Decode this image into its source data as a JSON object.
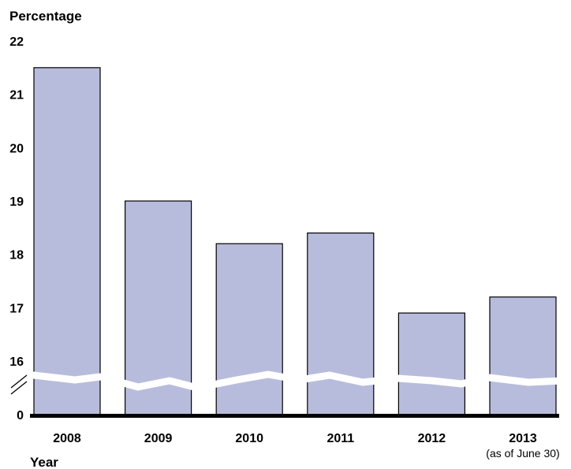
{
  "chart_data": {
    "type": "bar",
    "ylabel": "Percentage",
    "xlabel": "Year",
    "categories": [
      "2008",
      "2009",
      "2010",
      "2011",
      "2012",
      "2013"
    ],
    "category_notes": [
      "",
      "",
      "",
      "",
      "",
      "(as of June 30)"
    ],
    "values": [
      21.5,
      19.0,
      18.2,
      18.4,
      16.9,
      17.2
    ],
    "yticks": [
      "0",
      "16",
      "17",
      "18",
      "19",
      "20",
      "21",
      "22"
    ],
    "ylim": [
      0,
      22
    ],
    "axis_break": true,
    "grid": false,
    "colors": {
      "bar_fill": "#b8bcdc",
      "bar_stroke": "#000000",
      "axis": "#000000"
    }
  }
}
